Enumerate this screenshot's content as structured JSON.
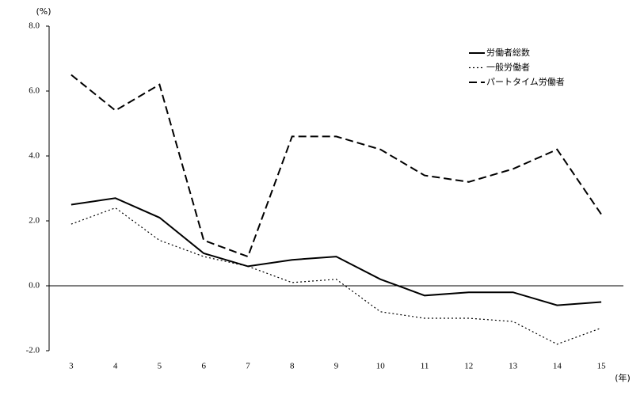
{
  "chart_data": {
    "type": "line",
    "y_unit_label": "(%)",
    "x_unit_label": "(年)",
    "categories": [
      "3",
      "4",
      "5",
      "6",
      "7",
      "8",
      "9",
      "10",
      "11",
      "12",
      "13",
      "14",
      "15"
    ],
    "series": [
      {
        "name": "労働者総数",
        "color": "#000000",
        "style": "solid",
        "values": [
          2.5,
          2.7,
          2.1,
          1.0,
          0.6,
          0.8,
          0.9,
          0.2,
          -0.3,
          -0.2,
          -0.2,
          -0.6,
          -0.5
        ]
      },
      {
        "name": "一般労働者",
        "color": "#000000",
        "style": "dotted",
        "values": [
          1.9,
          2.4,
          1.4,
          0.9,
          0.6,
          0.1,
          0.2,
          -0.8,
          -1.0,
          -1.0,
          -1.1,
          -1.8,
          -1.3
        ]
      },
      {
        "name": "パートタイム労働者",
        "color": "#000000",
        "style": "dashed",
        "values": [
          6.5,
          5.4,
          6.2,
          1.4,
          0.9,
          4.6,
          4.6,
          4.2,
          3.4,
          3.2,
          3.6,
          4.2,
          2.2
        ]
      }
    ],
    "ylim": [
      -2,
      8
    ],
    "yticks": [
      {
        "value": -2,
        "label": "-2.0"
      },
      {
        "value": 0,
        "label": "0.0"
      },
      {
        "value": 2,
        "label": "2.0"
      },
      {
        "value": 4,
        "label": "4.0"
      },
      {
        "value": 6,
        "label": "6.0"
      },
      {
        "value": 8,
        "label": "8.0"
      }
    ],
    "legend": "top-right"
  }
}
